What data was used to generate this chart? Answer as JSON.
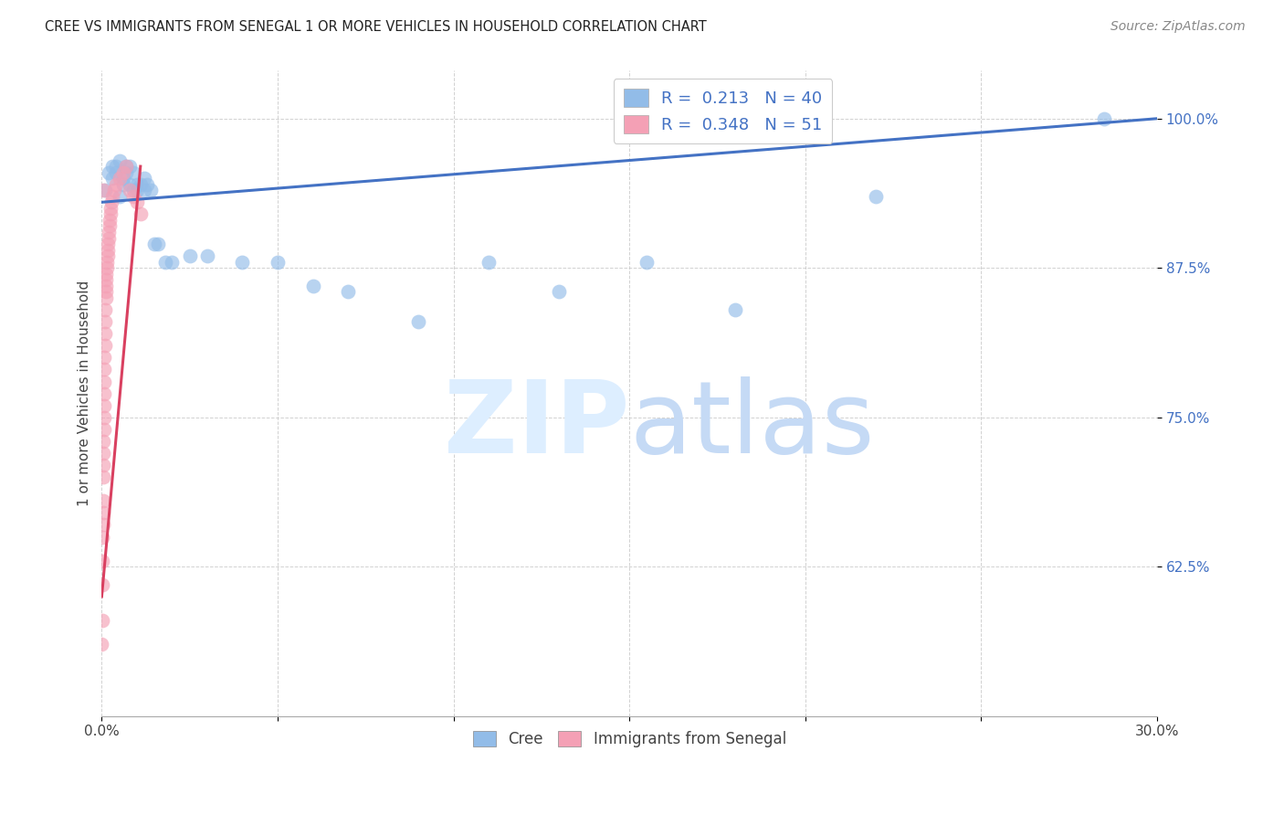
{
  "title": "CREE VS IMMIGRANTS FROM SENEGAL 1 OR MORE VEHICLES IN HOUSEHOLD CORRELATION CHART",
  "source": "Source: ZipAtlas.com",
  "ylabel": "1 or more Vehicles in Household",
  "ytick_labels": [
    "100.0%",
    "87.5%",
    "75.0%",
    "62.5%"
  ],
  "ytick_values": [
    1.0,
    0.875,
    0.75,
    0.625
  ],
  "xlim": [
    0.0,
    0.3
  ],
  "ylim": [
    0.5,
    1.04
  ],
  "cree_R": 0.213,
  "cree_N": 40,
  "senegal_R": 0.348,
  "senegal_N": 51,
  "cree_color": "#92bce8",
  "senegal_color": "#f4a0b5",
  "trendline_cree_color": "#4472c4",
  "trendline_senegal_color": "#d94060",
  "background_color": "#ffffff",
  "grid_color": "#cccccc",
  "cree_x": [
    0.001,
    0.002,
    0.003,
    0.003,
    0.004,
    0.004,
    0.005,
    0.005,
    0.006,
    0.006,
    0.007,
    0.007,
    0.008,
    0.008,
    0.009,
    0.009,
    0.01,
    0.01,
    0.011,
    0.012,
    0.012,
    0.013,
    0.014,
    0.015,
    0.016,
    0.018,
    0.02,
    0.025,
    0.03,
    0.04,
    0.05,
    0.06,
    0.07,
    0.09,
    0.11,
    0.13,
    0.155,
    0.18,
    0.22,
    0.285
  ],
  "cree_y": [
    0.94,
    0.955,
    0.96,
    0.95,
    0.955,
    0.96,
    0.935,
    0.965,
    0.95,
    0.945,
    0.96,
    0.955,
    0.945,
    0.96,
    0.94,
    0.955,
    0.945,
    0.94,
    0.945,
    0.94,
    0.95,
    0.945,
    0.94,
    0.895,
    0.895,
    0.88,
    0.88,
    0.885,
    0.885,
    0.88,
    0.88,
    0.86,
    0.855,
    0.83,
    0.88,
    0.855,
    0.88,
    0.84,
    0.935,
    1.0
  ],
  "senegal_x": [
    0.0,
    0.0001,
    0.0001,
    0.0002,
    0.0002,
    0.0003,
    0.0003,
    0.0003,
    0.0004,
    0.0004,
    0.0005,
    0.0005,
    0.0005,
    0.0006,
    0.0006,
    0.0006,
    0.0007,
    0.0007,
    0.0008,
    0.0008,
    0.0009,
    0.0009,
    0.001,
    0.001,
    0.0011,
    0.0011,
    0.0012,
    0.0012,
    0.0013,
    0.0014,
    0.0015,
    0.0016,
    0.0017,
    0.0018,
    0.0019,
    0.002,
    0.0021,
    0.0022,
    0.0024,
    0.0026,
    0.0028,
    0.003,
    0.0035,
    0.004,
    0.005,
    0.006,
    0.007,
    0.008,
    0.009,
    0.01,
    0.011
  ],
  "senegal_y": [
    0.56,
    0.58,
    0.61,
    0.63,
    0.65,
    0.66,
    0.67,
    0.94,
    0.68,
    0.7,
    0.71,
    0.72,
    0.73,
    0.74,
    0.75,
    0.76,
    0.77,
    0.78,
    0.79,
    0.8,
    0.81,
    0.82,
    0.83,
    0.84,
    0.85,
    0.855,
    0.86,
    0.865,
    0.87,
    0.875,
    0.88,
    0.885,
    0.89,
    0.895,
    0.9,
    0.905,
    0.91,
    0.915,
    0.92,
    0.925,
    0.93,
    0.935,
    0.94,
    0.945,
    0.95,
    0.955,
    0.96,
    0.94,
    0.935,
    0.93,
    0.92
  ],
  "cree_trendline_x": [
    0.0,
    0.3
  ],
  "cree_trendline_y": [
    0.93,
    1.0
  ],
  "senegal_trendline_x": [
    0.0,
    0.011
  ],
  "senegal_trendline_y": [
    0.6,
    0.96
  ]
}
